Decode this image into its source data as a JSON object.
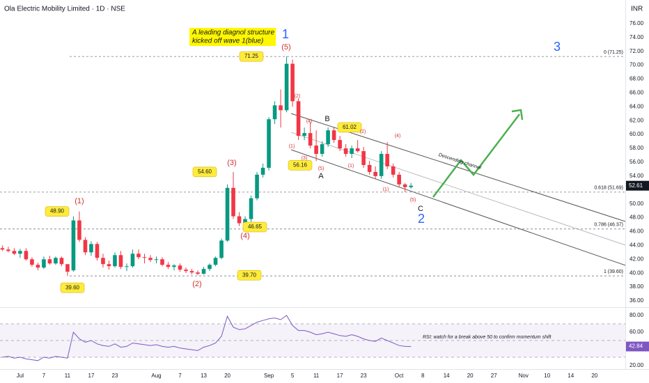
{
  "chart_data": [
    {
      "type": "candlestick",
      "title": "Ola Electric Mobility Limited · 1D · NSE",
      "y_label": "INR",
      "xlim": [
        -3.4,
        102.2
      ],
      "ylim": [
        35.2,
        79.4
      ],
      "xticks": [
        {
          "value": 0,
          "label": "Jul"
        },
        {
          "value": 4,
          "label": "7"
        },
        {
          "value": 8,
          "label": "11"
        },
        {
          "value": 12,
          "label": "17"
        },
        {
          "value": 16,
          "label": "23"
        },
        {
          "value": 23,
          "label": "Aug"
        },
        {
          "value": 27,
          "label": "7"
        },
        {
          "value": 31,
          "label": "13"
        },
        {
          "value": 35,
          "label": "20"
        },
        {
          "value": 42,
          "label": "Sep"
        },
        {
          "value": 46,
          "label": "5"
        },
        {
          "value": 50,
          "label": "11"
        },
        {
          "value": 54,
          "label": "17"
        },
        {
          "value": 58,
          "label": "23"
        },
        {
          "value": 64,
          "label": "Oct"
        },
        {
          "value": 68,
          "label": "8"
        },
        {
          "value": 72,
          "label": "14"
        },
        {
          "value": 76,
          "label": "20"
        },
        {
          "value": 80,
          "label": "27"
        },
        {
          "value": 85,
          "label": "Nov"
        },
        {
          "value": 89,
          "label": "10"
        },
        {
          "value": 93,
          "label": "14"
        },
        {
          "value": 97,
          "label": "20"
        }
      ],
      "yticks": [
        {
          "value": 76,
          "label": "76.00"
        },
        {
          "value": 74,
          "label": "74.00"
        },
        {
          "value": 72,
          "label": "72.00"
        },
        {
          "value": 70,
          "label": "70.00"
        },
        {
          "value": 68,
          "label": "68.00"
        },
        {
          "value": 66,
          "label": "66.00"
        },
        {
          "value": 64,
          "label": "64.00"
        },
        {
          "value": 62,
          "label": "62.00"
        },
        {
          "value": 60,
          "label": "60.00"
        },
        {
          "value": 58,
          "label": "58.00"
        },
        {
          "value": 56,
          "label": "56.00"
        },
        {
          "value": 54,
          "label": "54.00"
        },
        {
          "value": 50,
          "label": "50.00"
        },
        {
          "value": 48,
          "label": "48.00"
        },
        {
          "value": 46,
          "label": "46.00"
        },
        {
          "value": 44,
          "label": "44.00"
        },
        {
          "value": 42,
          "label": "42.00"
        },
        {
          "value": 40,
          "label": "40.00"
        },
        {
          "value": 38,
          "label": "38.00"
        },
        {
          "value": 36,
          "label": "36.00"
        }
      ],
      "grid": false,
      "up_color": "#089981",
      "down_color": "#f23645",
      "candles": {
        "x": [
          -3,
          -2,
          -1,
          0,
          1,
          2,
          3,
          4,
          5,
          6,
          7,
          8,
          9,
          10,
          11,
          12,
          13,
          14,
          15,
          16,
          17,
          18,
          19,
          20,
          21,
          22,
          23,
          24,
          25,
          26,
          27,
          28,
          29,
          30,
          31,
          32,
          33,
          34,
          35,
          36,
          37,
          38,
          39,
          40,
          41,
          42,
          43,
          44,
          45,
          46,
          47,
          48,
          49,
          50,
          51,
          52,
          53,
          54,
          55,
          56,
          57,
          58,
          59,
          60,
          61,
          62,
          63,
          64,
          65,
          66
        ],
        "open": [
          43.6,
          43.4,
          43.2,
          42.8,
          43.2,
          42.0,
          41.2,
          40.8,
          42.0,
          41.4,
          42.2,
          41.3,
          40.4,
          47.6,
          44.8,
          43.0,
          44.2,
          42.2,
          41.3,
          41.0,
          42.6,
          40.9,
          41.0,
          42.8,
          42.3,
          42.2,
          41.9,
          42.0,
          41.2,
          40.9,
          41.1,
          40.5,
          40.3,
          40.1,
          39.9,
          40.6,
          41.2,
          42.2,
          44.7,
          52.3,
          48.2,
          47.2,
          47.8,
          50.8,
          54.2,
          55.2,
          62.2,
          64.2,
          63.5,
          70.2,
          64.8,
          59.8,
          60.2,
          58.4,
          57.2,
          58.6,
          60.6,
          59.2,
          58.0,
          57.2,
          58.0,
          57.6,
          55.6,
          54.6,
          54.0,
          57.2,
          55.4,
          54.2,
          52.8,
          52.4
        ],
        "high": [
          44.0,
          43.8,
          43.6,
          43.5,
          43.6,
          42.3,
          41.5,
          42.4,
          42.5,
          42.4,
          42.4,
          41.2,
          48.2,
          48.9,
          45.2,
          44.6,
          44.5,
          42.8,
          41.8,
          43.0,
          43.2,
          41.4,
          43.4,
          43.4,
          42.8,
          42.6,
          42.4,
          42.3,
          41.6,
          41.3,
          41.4,
          40.8,
          40.6,
          40.4,
          40.9,
          41.4,
          42.4,
          45.0,
          52.8,
          54.6,
          48.8,
          48.2,
          51.2,
          54.6,
          55.8,
          62.5,
          64.8,
          66.5,
          71.25,
          70.8,
          65.2,
          61.0,
          61.8,
          60.6,
          59.0,
          61.02,
          61.0,
          59.8,
          58.6,
          58.4,
          59.2,
          58.2,
          56.2,
          55.4,
          57.6,
          58.9,
          55.8,
          54.6,
          53.0,
          53.0
        ],
        "low": [
          43.2,
          43.0,
          42.6,
          42.2,
          41.8,
          40.9,
          40.4,
          40.6,
          41.2,
          41.2,
          41.0,
          39.6,
          40.2,
          44.5,
          42.6,
          42.5,
          41.8,
          40.8,
          40.5,
          40.8,
          40.6,
          40.3,
          40.8,
          42.0,
          41.4,
          41.6,
          41.4,
          41.0,
          40.6,
          40.4,
          40.2,
          40.0,
          39.8,
          39.7,
          39.8,
          40.3,
          41.0,
          42.0,
          44.5,
          47.8,
          46.8,
          46.65,
          47.4,
          50.5,
          53.8,
          54.8,
          61.5,
          61.0,
          63.2,
          64.0,
          59.2,
          59.2,
          58.0,
          56.16,
          56.8,
          58.2,
          58.8,
          57.6,
          56.8,
          56.6,
          57.4,
          55.2,
          54.2,
          53.6,
          53.6,
          55.0,
          53.8,
          52.4,
          51.7,
          52.2
        ],
        "close": [
          43.4,
          43.2,
          42.8,
          43.2,
          42.0,
          41.2,
          40.8,
          42.0,
          41.4,
          42.2,
          41.3,
          40.2,
          47.6,
          44.8,
          43.0,
          44.2,
          42.2,
          41.3,
          41.0,
          42.6,
          40.9,
          41.0,
          42.8,
          42.3,
          42.2,
          41.9,
          42.0,
          41.2,
          40.9,
          41.1,
          40.5,
          40.3,
          40.1,
          39.9,
          40.6,
          41.2,
          42.2,
          44.7,
          52.3,
          48.2,
          47.2,
          47.8,
          50.8,
          54.2,
          55.2,
          62.2,
          64.2,
          63.5,
          70.2,
          64.8,
          59.8,
          60.2,
          58.4,
          57.2,
          58.6,
          60.6,
          59.2,
          58.0,
          57.2,
          58.0,
          57.6,
          55.6,
          54.6,
          54.0,
          57.2,
          55.4,
          54.2,
          52.8,
          52.4,
          52.61
        ]
      },
      "fib_levels": [
        {
          "value": 71.25,
          "label": "0 (71.25)"
        },
        {
          "value": 51.69,
          "label": "0.618 (51.69)"
        },
        {
          "value": 46.37,
          "label": "0.786 (46.37)"
        },
        {
          "value": 39.6,
          "label": "1 (39.60)"
        }
      ],
      "callouts": [
        71.25,
        {
          "value": 48.9,
          "label": "48.90"
        },
        {
          "value": 39.6,
          "label": "39.60"
        },
        {
          "value": 54.6,
          "label": "54.60"
        },
        46.65,
        {
          "value": 39.7,
          "label": "39.70"
        },
        56.16,
        61.02
      ],
      "wave_labels": [
        "1",
        "(5)",
        "(1)",
        "(2)",
        "(3)",
        "(4)",
        "A",
        "B",
        "C",
        "2",
        "3",
        "(2)",
        "(4)",
        "(1)",
        "(3)",
        "(5)",
        "(1)",
        "(2)",
        "(4)",
        "(1)",
        "(5)"
      ],
      "annotations": [
        "A leading diagnol structure",
        "kicked off wave 1(blue)",
        "Descending channel"
      ]
    },
    {
      "type": "line",
      "name": "RSI",
      "color": "#7e57c2",
      "ylim": [
        15.8,
        87.5
      ],
      "yticks": [
        {
          "value": 80,
          "label": "80.00"
        },
        {
          "value": 60,
          "label": "60.00"
        },
        {
          "value": 40,
          "label": "40.00"
        },
        {
          "value": 20,
          "label": "20.00"
        }
      ],
      "band": [
        30,
        70
      ],
      "guides": [
        70,
        50,
        30
      ],
      "values": [
        30,
        31,
        29,
        30,
        28,
        27,
        26,
        30,
        29,
        31,
        30,
        29,
        60,
        52,
        48,
        50,
        46,
        44,
        43,
        46,
        42,
        43,
        47,
        46,
        45,
        44,
        45,
        43,
        42,
        43,
        41,
        40,
        39,
        38,
        42,
        44,
        47,
        55,
        79,
        66,
        63,
        64,
        68,
        72,
        74,
        76,
        77,
        75,
        80,
        68,
        62,
        62,
        60,
        57,
        58,
        60,
        58,
        56,
        55,
        57,
        55,
        52,
        50,
        49,
        53,
        50,
        47,
        44,
        43,
        42.84
      ],
      "annotation": "RSI: watch for a break above 50 to confirm momentum shift"
    }
  ]
}
